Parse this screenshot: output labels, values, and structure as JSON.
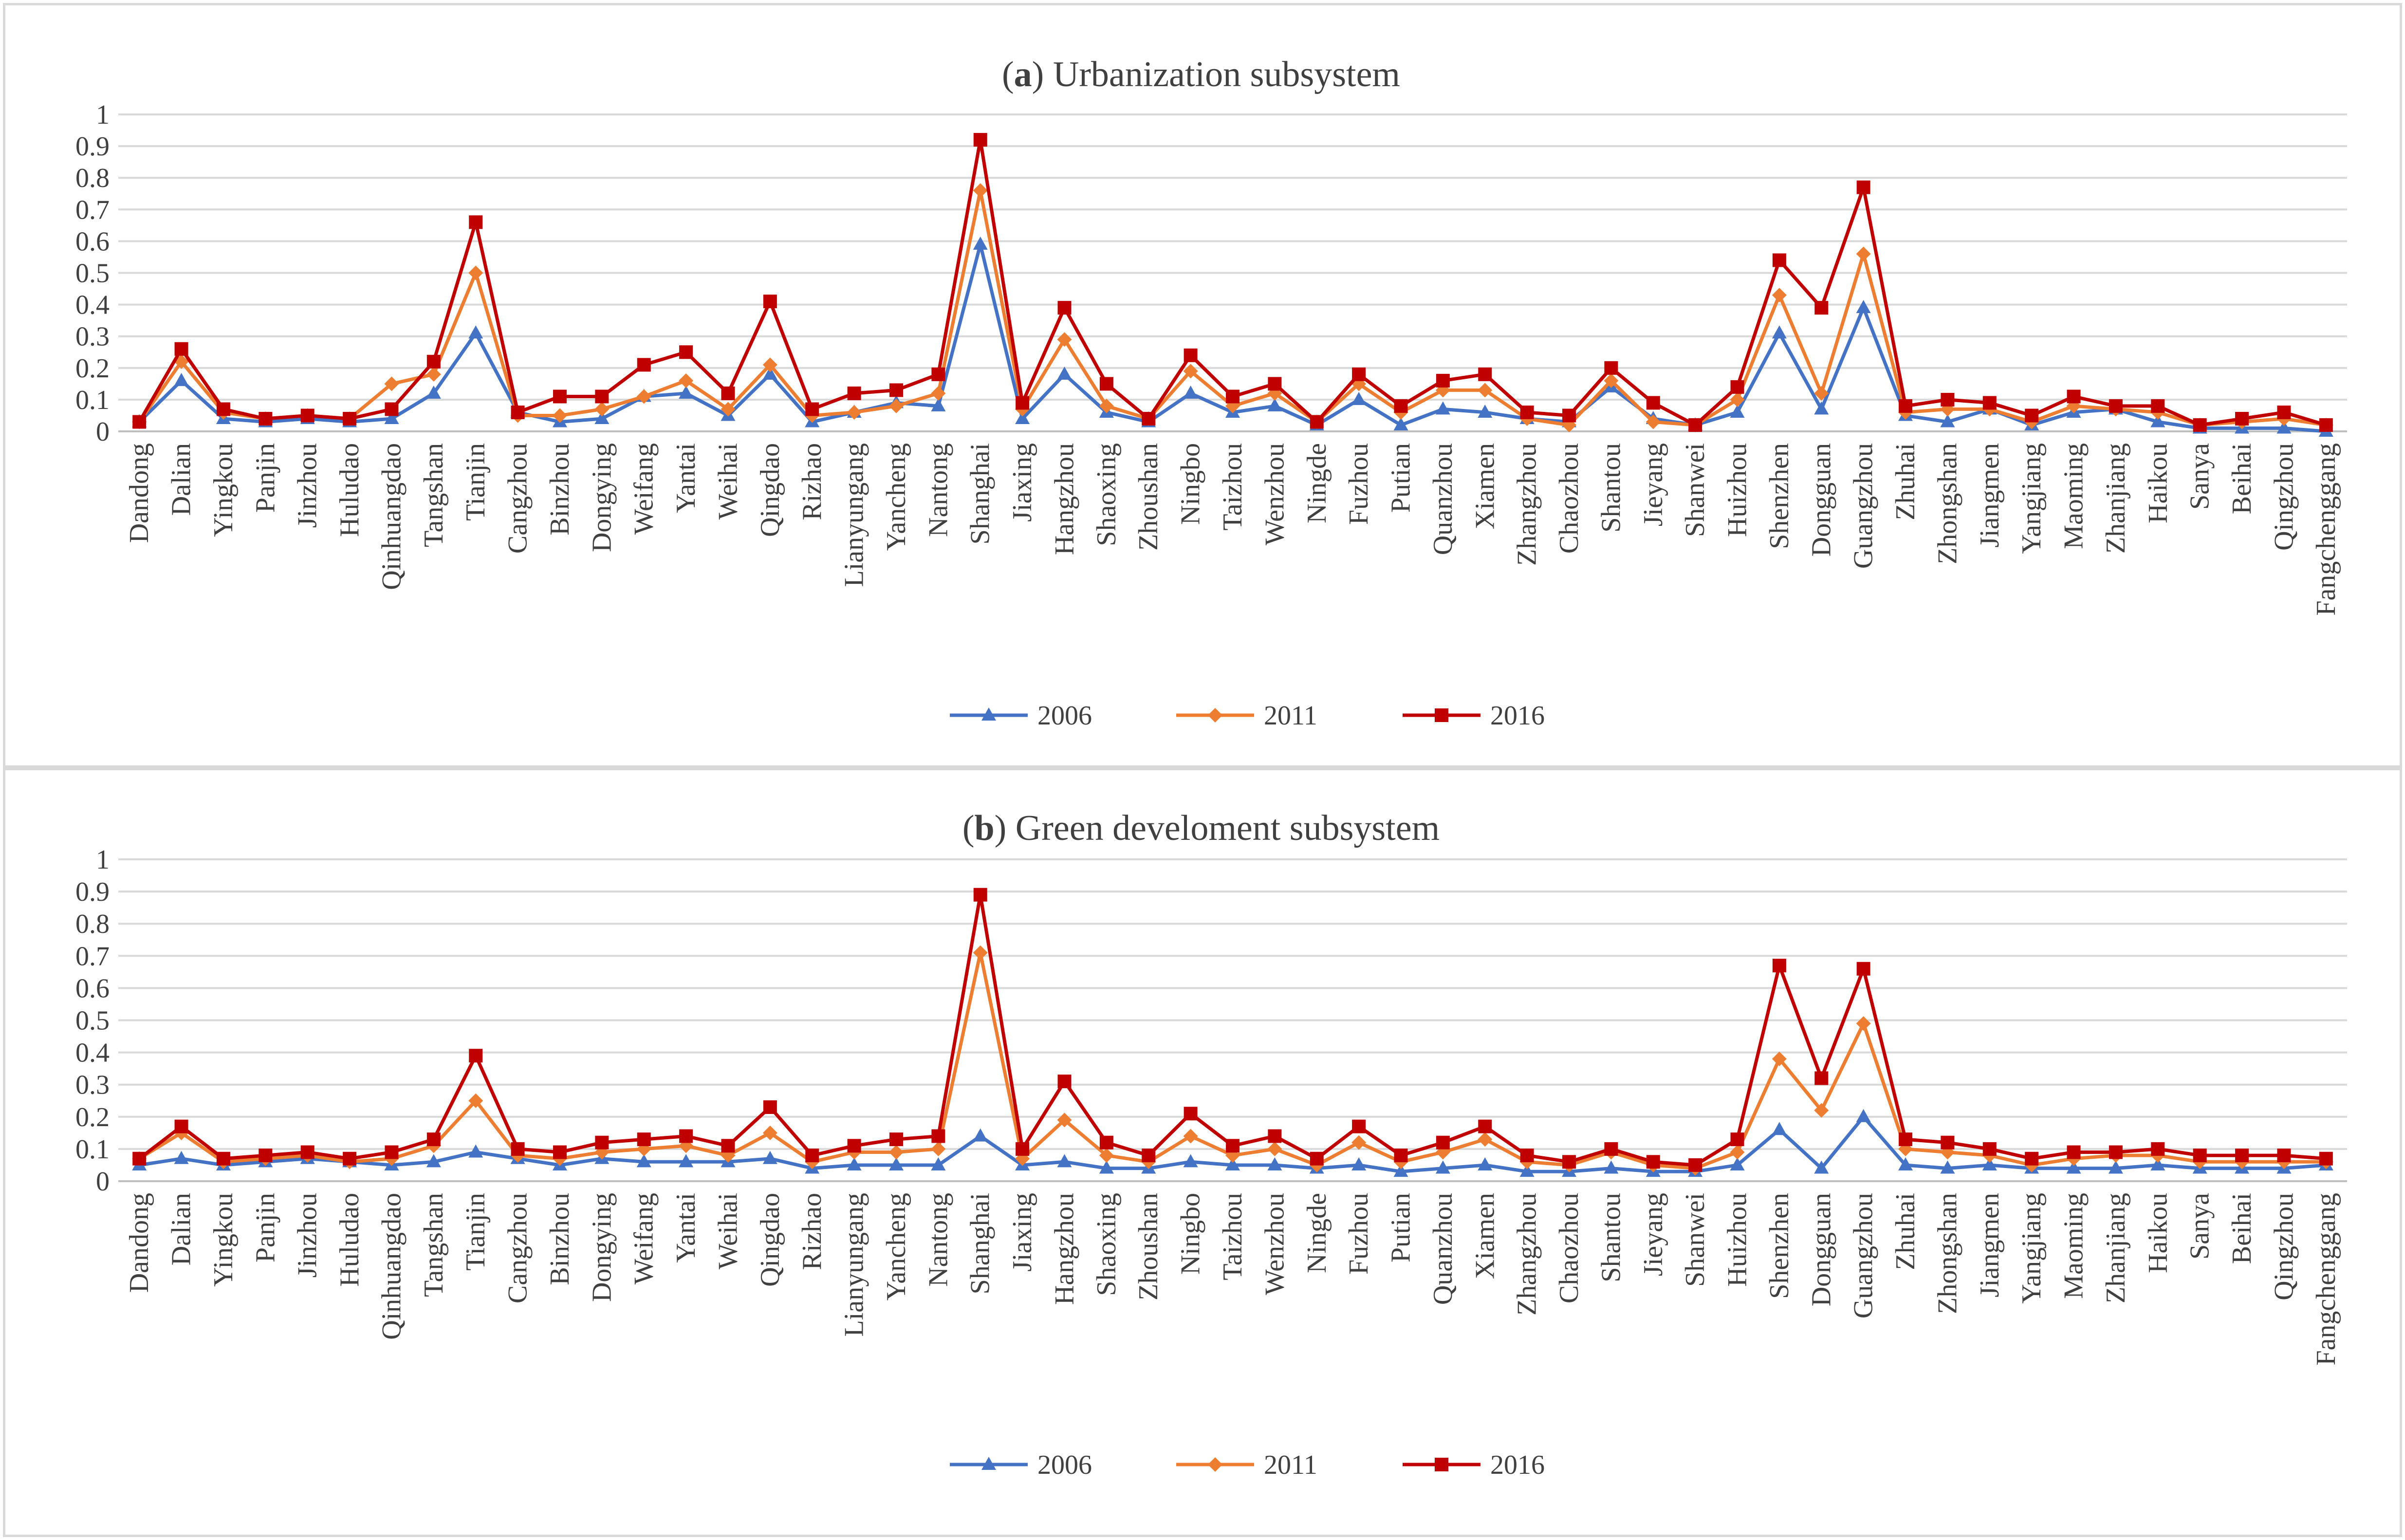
{
  "chart_data": [
    {
      "type": "line",
      "title_prefix": "(",
      "title_letter": "a",
      "title_rest": ") Urbanization subsystem",
      "xlabel": "",
      "ylabel": "",
      "ylim": [
        0,
        1
      ],
      "yticks": [
        "0",
        "0.1",
        "0.2",
        "0.3",
        "0.4",
        "0.5",
        "0.6",
        "0.7",
        "0.8",
        "0.9",
        "1"
      ],
      "grid": true,
      "legend_position": "bottom-center",
      "categories": [
        "Dandong",
        "Dalian",
        "Yingkou",
        "Panjin",
        "Jinzhou",
        "Huludao",
        "Qinhuangdao",
        "Tangshan",
        "Tianjin",
        "Cangzhou",
        "Binzhou",
        "Dongying",
        "Weifang",
        "Yantai",
        "Weihai",
        "Qingdao",
        "Rizhao",
        "Lianyungang",
        "Yancheng",
        "Nantong",
        "Shanghai",
        "Jiaxing",
        "Hangzhou",
        "Shaoxing",
        "Zhoushan",
        "Ningbo",
        "Taizhou",
        "Wenzhou",
        "Ningde",
        "Fuzhou",
        "Putian",
        "Quanzhou",
        "Xiamen",
        "Zhangzhou",
        "Chaozhou",
        "Shantou",
        "Jieyang",
        "Shanwei",
        "Huizhou",
        "Shenzhen",
        "Dongguan",
        "Guangzhou",
        "Zhuhai",
        "Zhongshan",
        "Jiangmen",
        "Yangjiang",
        "Maoming",
        "Zhanjiang",
        "Haikou",
        "Sanya",
        "Beihai",
        "Qingzhou",
        "Fangchenggang"
      ],
      "series": [
        {
          "name": "2006",
          "color": "#4472c4",
          "marker": "triangle",
          "values": [
            0.03,
            0.16,
            0.04,
            0.03,
            0.04,
            0.03,
            0.04,
            0.12,
            0.31,
            0.06,
            0.03,
            0.04,
            0.11,
            0.12,
            0.05,
            0.18,
            0.03,
            0.06,
            0.09,
            0.08,
            0.59,
            0.04,
            0.18,
            0.06,
            0.03,
            0.12,
            0.06,
            0.08,
            0.02,
            0.1,
            0.02,
            0.07,
            0.06,
            0.04,
            0.03,
            0.14,
            0.04,
            0.02,
            0.06,
            0.31,
            0.07,
            0.39,
            0.05,
            0.03,
            0.07,
            0.02,
            0.06,
            0.07,
            0.03,
            0.01,
            0.01,
            0.01,
            0.0
          ]
        },
        {
          "name": "2011",
          "color": "#ed7d31",
          "marker": "diamond",
          "values": [
            0.03,
            0.22,
            0.06,
            0.04,
            0.05,
            0.04,
            0.15,
            0.18,
            0.5,
            0.05,
            0.05,
            0.07,
            0.11,
            0.16,
            0.07,
            0.21,
            0.05,
            0.06,
            0.08,
            0.12,
            0.76,
            0.07,
            0.29,
            0.08,
            0.04,
            0.19,
            0.08,
            0.12,
            0.03,
            0.15,
            0.06,
            0.13,
            0.13,
            0.04,
            0.02,
            0.16,
            0.03,
            0.02,
            0.1,
            0.43,
            0.12,
            0.56,
            0.06,
            0.07,
            0.07,
            0.03,
            0.08,
            0.07,
            0.06,
            0.02,
            0.03,
            0.04,
            0.02
          ]
        },
        {
          "name": "2016",
          "color": "#c00000",
          "marker": "square",
          "values": [
            0.03,
            0.26,
            0.07,
            0.04,
            0.05,
            0.04,
            0.07,
            0.22,
            0.66,
            0.06,
            0.11,
            0.11,
            0.21,
            0.25,
            0.12,
            0.41,
            0.07,
            0.12,
            0.13,
            0.18,
            0.92,
            0.09,
            0.39,
            0.15,
            0.04,
            0.24,
            0.11,
            0.15,
            0.03,
            0.18,
            0.08,
            0.16,
            0.18,
            0.06,
            0.05,
            0.2,
            0.09,
            0.02,
            0.14,
            0.54,
            0.39,
            0.77,
            0.08,
            0.1,
            0.09,
            0.05,
            0.11,
            0.08,
            0.08,
            0.02,
            0.04,
            0.06,
            0.02
          ]
        }
      ]
    },
    {
      "type": "line",
      "title_prefix": "(",
      "title_letter": "b",
      "title_rest": ") Green develoment subsystem",
      "xlabel": "",
      "ylabel": "",
      "ylim": [
        0,
        1
      ],
      "yticks": [
        "0",
        "0.1",
        "0.2",
        "0.3",
        "0.4",
        "0.5",
        "0.6",
        "0.7",
        "0.8",
        "0.9",
        "1"
      ],
      "grid": true,
      "legend_position": "bottom-center",
      "categories": [
        "Dandong",
        "Dalian",
        "Yingkou",
        "Panjin",
        "Jinzhou",
        "Huludao",
        "Qinhuangdao",
        "Tangshan",
        "Tianjin",
        "Cangzhou",
        "Binzhou",
        "Dongying",
        "Weifang",
        "Yantai",
        "Weihai",
        "Qingdao",
        "Rizhao",
        "Lianyungang",
        "Yancheng",
        "Nantong",
        "Shanghai",
        "Jiaxing",
        "Hangzhou",
        "Shaoxing",
        "Zhoushan",
        "Ningbo",
        "Taizhou",
        "Wenzhou",
        "Ningde",
        "Fuzhou",
        "Putian",
        "Quanzhou",
        "Xiamen",
        "Zhangzhou",
        "Chaozhou",
        "Shantou",
        "Jieyang",
        "Shanwei",
        "Huizhou",
        "Shenzhen",
        "Dongguan",
        "Guangzhou",
        "Zhuhai",
        "Zhongshan",
        "Jiangmen",
        "Yangjiang",
        "Maoming",
        "Zhanjiang",
        "Haikou",
        "Sanya",
        "Beihai",
        "Qingzhou",
        "Fangchenggang"
      ],
      "series": [
        {
          "name": "2006",
          "color": "#4472c4",
          "marker": "triangle",
          "values": [
            0.05,
            0.07,
            0.05,
            0.06,
            0.07,
            0.06,
            0.05,
            0.06,
            0.09,
            0.07,
            0.05,
            0.07,
            0.06,
            0.06,
            0.06,
            0.07,
            0.04,
            0.05,
            0.05,
            0.05,
            0.14,
            0.05,
            0.06,
            0.04,
            0.04,
            0.06,
            0.05,
            0.05,
            0.04,
            0.05,
            0.03,
            0.04,
            0.05,
            0.03,
            0.03,
            0.04,
            0.03,
            0.03,
            0.05,
            0.16,
            0.04,
            0.2,
            0.05,
            0.04,
            0.05,
            0.04,
            0.04,
            0.04,
            0.05,
            0.04,
            0.04,
            0.04,
            0.05
          ]
        },
        {
          "name": "2011",
          "color": "#ed7d31",
          "marker": "diamond",
          "values": [
            0.07,
            0.15,
            0.06,
            0.07,
            0.08,
            0.06,
            0.07,
            0.11,
            0.25,
            0.08,
            0.07,
            0.09,
            0.1,
            0.11,
            0.08,
            0.15,
            0.06,
            0.09,
            0.09,
            0.1,
            0.71,
            0.07,
            0.19,
            0.08,
            0.06,
            0.14,
            0.08,
            0.1,
            0.05,
            0.12,
            0.06,
            0.09,
            0.13,
            0.06,
            0.05,
            0.09,
            0.05,
            0.04,
            0.09,
            0.38,
            0.22,
            0.49,
            0.1,
            0.09,
            0.08,
            0.05,
            0.07,
            0.08,
            0.08,
            0.06,
            0.06,
            0.06,
            0.06
          ]
        },
        {
          "name": "2016",
          "color": "#c00000",
          "marker": "square",
          "values": [
            0.07,
            0.17,
            0.07,
            0.08,
            0.09,
            0.07,
            0.09,
            0.13,
            0.39,
            0.1,
            0.09,
            0.12,
            0.13,
            0.14,
            0.11,
            0.23,
            0.08,
            0.11,
            0.13,
            0.14,
            0.89,
            0.1,
            0.31,
            0.12,
            0.08,
            0.21,
            0.11,
            0.14,
            0.07,
            0.17,
            0.08,
            0.12,
            0.17,
            0.08,
            0.06,
            0.1,
            0.06,
            0.05,
            0.13,
            0.67,
            0.32,
            0.66,
            0.13,
            0.12,
            0.1,
            0.07,
            0.09,
            0.09,
            0.1,
            0.08,
            0.08,
            0.08,
            0.07
          ]
        }
      ]
    }
  ]
}
